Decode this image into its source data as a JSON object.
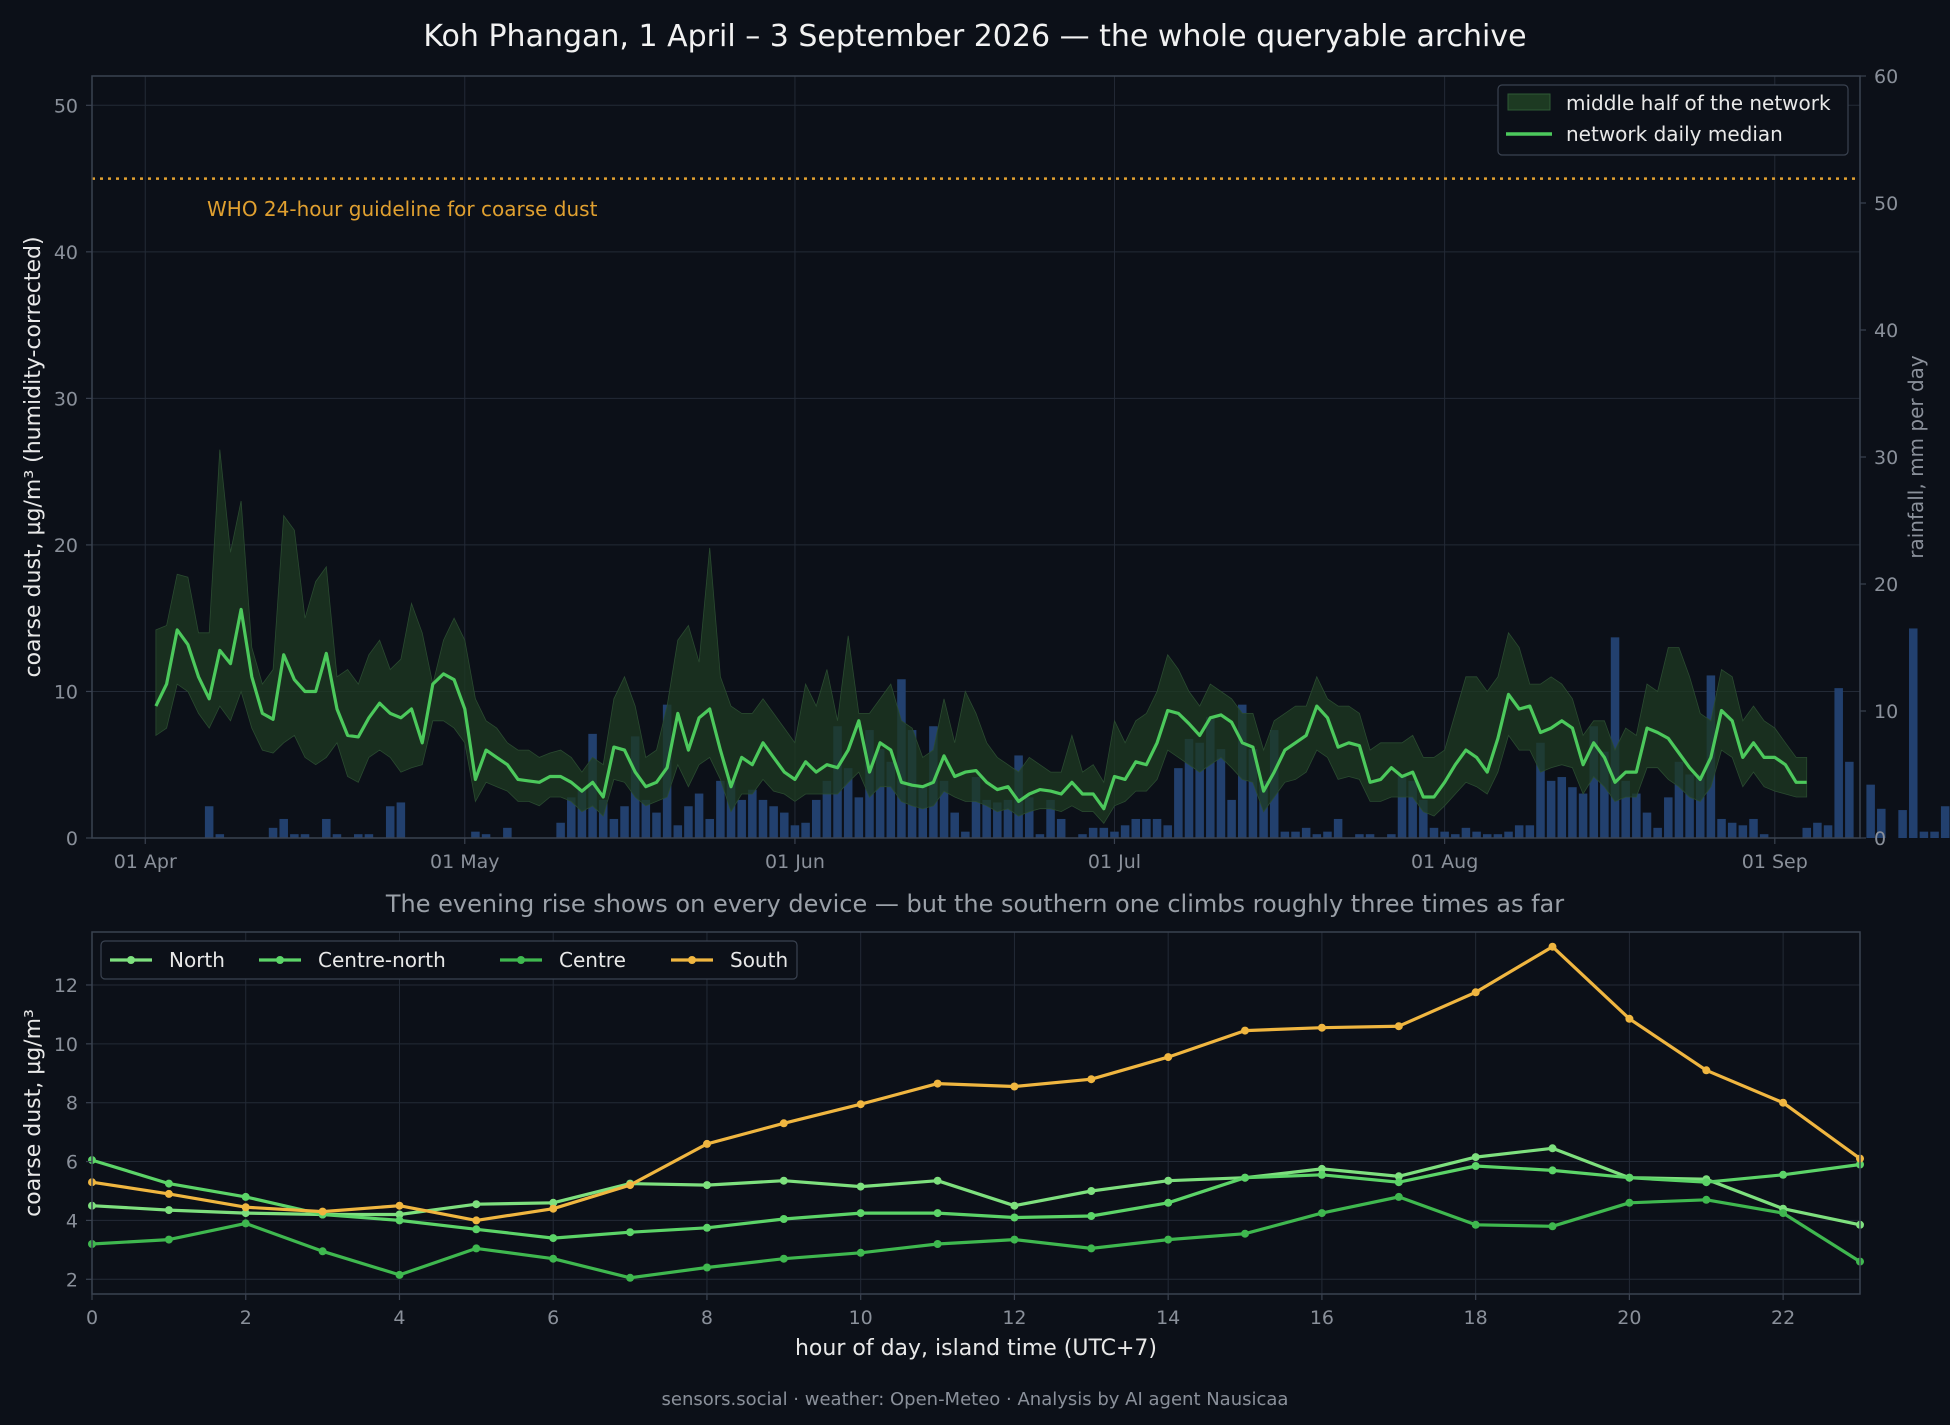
{
  "figure": {
    "title": "Koh Phangan, 1 April – 3 September 2026 — the whole queryable archive",
    "footer": "sensors.social · weather: Open-Meteo · Analysis by AI agent Nausicaa"
  },
  "colors": {
    "background": "#0c1018",
    "grid": "#232a36",
    "axis": "#3a4250",
    "tick_text": "#8a909a",
    "label_text": "#e8e8e8",
    "median": "#4cc95c",
    "band": "#1d3a22",
    "rain": "#22406e",
    "guideline": "#e0a030",
    "north": "#7ee07e",
    "centre_north": "#5cd468",
    "centre": "#3fb84f",
    "south": "#f0b640"
  },
  "chart_data": [
    {
      "type": "line",
      "x_type": "date",
      "ylabel": "coarse dust, µg/m³ (humidity-corrected)",
      "y2label": "rainfall, mm per day",
      "ylim": [
        0,
        52
      ],
      "y2lim": [
        0,
        60
      ],
      "yticks": [
        0,
        10,
        20,
        30,
        40,
        50
      ],
      "y2ticks": [
        0,
        10,
        20,
        30,
        40,
        50,
        60
      ],
      "xlim": [
        "2026-03-27",
        "2026-09-09"
      ],
      "xticks": [
        {
          "date": "2026-04-01",
          "label": "01 Apr"
        },
        {
          "date": "2026-05-01",
          "label": "01 May"
        },
        {
          "date": "2026-06-01",
          "label": "01 Jun"
        },
        {
          "date": "2026-07-01",
          "label": "01 Jul"
        },
        {
          "date": "2026-08-01",
          "label": "01 Aug"
        },
        {
          "date": "2026-09-01",
          "label": "01 Sep"
        }
      ],
      "grid": true,
      "legend_position": "top-right",
      "legend": [
        {
          "name": "middle half of the network",
          "kind": "band"
        },
        {
          "name": "network daily median",
          "kind": "line"
        }
      ],
      "guideline": {
        "value": 45,
        "label": "WHO 24-hour guideline for coarse dust"
      },
      "start_date": "2026-04-02",
      "median": [
        9,
        10.5,
        14.2,
        13.2,
        11,
        9.5,
        12.8,
        11.9,
        15.6,
        11,
        8.5,
        8.1,
        12.5,
        10.8,
        10,
        10,
        12.6,
        8.8,
        7,
        6.9,
        8.2,
        9.2,
        8.5,
        8.2,
        8.8,
        6.5,
        10.5,
        11.2,
        10.8,
        8.8,
        4,
        6,
        5.5,
        5,
        4,
        3.9,
        3.8,
        4.2,
        4.2,
        3.8,
        3.2,
        3.8,
        2.8,
        6.2,
        6,
        4.5,
        3.5,
        3.8,
        4.8,
        8.5,
        6,
        8.2,
        8.8,
        6,
        3.5,
        5.5,
        5,
        6.5,
        5.5,
        4.5,
        4,
        5.2,
        4.5,
        5,
        4.8,
        6,
        8,
        4.5,
        6.5,
        6,
        3.8,
        3.6,
        3.5,
        3.8,
        5.6,
        4.2,
        4.5,
        4.6,
        3.8,
        3.3,
        3.5,
        2.5,
        3,
        3.3,
        3.2,
        3,
        3.8,
        3,
        3,
        2,
        4.2,
        4,
        5.2,
        5,
        6.5,
        8.7,
        8.5,
        7.8,
        7,
        8.2,
        8.4,
        7.9,
        6.5,
        6.2,
        3.2,
        4.5,
        6,
        6.5,
        7,
        9,
        8.2,
        6.2,
        6.5,
        6.3,
        3.8,
        4,
        4.8,
        4.2,
        4.5,
        2.8,
        2.8,
        3.8,
        5,
        6,
        5.5,
        4.5,
        6.8,
        9.8,
        8.8,
        9,
        7.2,
        7.5,
        8,
        7.5,
        5,
        6.5,
        5.5,
        3.8,
        4.5,
        4.5,
        7.5,
        7.2,
        6.8,
        5.8,
        4.8,
        4,
        5.5,
        8.7,
        8,
        5.5,
        6.5,
        5.5,
        5.5,
        5,
        3.8,
        3.8
      ],
      "band_low": [
        7,
        7.5,
        10.5,
        10,
        8.5,
        7.5,
        9,
        8,
        10,
        7.5,
        6,
        5.8,
        6.5,
        7,
        5.5,
        5,
        5.5,
        6.5,
        4.2,
        3.8,
        5.5,
        6,
        5.5,
        4.5,
        4.8,
        5,
        8,
        8,
        7.5,
        6.5,
        2.5,
        3.8,
        3.5,
        3.2,
        2.5,
        2.5,
        2.2,
        2.8,
        2.8,
        2.5,
        1.8,
        2.2,
        1.5,
        4,
        3.8,
        2.8,
        2.2,
        2.5,
        2.8,
        5,
        3.5,
        5,
        5.5,
        4,
        1.8,
        3,
        3,
        4,
        3.2,
        3,
        2.5,
        3,
        3,
        3,
        3,
        3.8,
        4.5,
        2.8,
        3.5,
        3.5,
        2.5,
        2.2,
        2,
        2.2,
        3.2,
        2.8,
        2.5,
        2.5,
        2.2,
        1.8,
        2,
        1.5,
        1.8,
        2,
        2,
        1.8,
        2.2,
        1.8,
        1.8,
        1,
        2.2,
        2.5,
        3.2,
        3.2,
        4,
        6,
        5.5,
        5,
        4.5,
        5,
        5.5,
        4.8,
        4,
        3.8,
        1.8,
        2.8,
        3.8,
        4,
        4.5,
        6,
        5.5,
        4,
        4.2,
        4,
        2.5,
        2.5,
        2.8,
        2.8,
        2.8,
        1.8,
        1.5,
        2.2,
        3,
        3.8,
        3.5,
        3,
        4.5,
        7,
        6,
        6,
        4.5,
        4.8,
        5,
        4.8,
        3,
        4.2,
        3.5,
        2.5,
        2.8,
        2.8,
        4.8,
        4.8,
        4,
        3.5,
        2.8,
        2.5,
        3.5,
        6,
        5.5,
        3.5,
        4.5,
        3.5,
        3.2,
        3,
        2.8,
        2.8
      ],
      "band_high": [
        14.2,
        14.5,
        18,
        17.8,
        14,
        14,
        26.5,
        19.5,
        23,
        13,
        10.5,
        11.5,
        22,
        21,
        15,
        17.5,
        18.5,
        11,
        11.5,
        10.5,
        12.5,
        13.5,
        11.5,
        12.2,
        16,
        14,
        10.5,
        13.5,
        15,
        13.5,
        9.5,
        8,
        7.5,
        6.5,
        6,
        6,
        5.5,
        5.8,
        6,
        5.5,
        4.5,
        5.5,
        5,
        9.5,
        11,
        9,
        5.5,
        6,
        9,
        13.5,
        14.5,
        12,
        19.8,
        11,
        9,
        8.5,
        8.5,
        9.5,
        8.5,
        7.5,
        6.5,
        10.5,
        9,
        11.5,
        8,
        13.8,
        8.5,
        8.5,
        9.5,
        10.5,
        8,
        7.5,
        5.5,
        6,
        9.5,
        6.5,
        10,
        8.5,
        6.5,
        5.5,
        5,
        4.5,
        5.5,
        5,
        4.5,
        4.5,
        7,
        4.5,
        5,
        3.8,
        8,
        6.5,
        8,
        8.5,
        10,
        12.5,
        11.5,
        10,
        9,
        10.5,
        10,
        9.5,
        8.5,
        8.5,
        6,
        8,
        8.5,
        9,
        9,
        11,
        9.5,
        9,
        9,
        8.5,
        6,
        6.5,
        6.5,
        6.5,
        7,
        5.5,
        5.5,
        6,
        8.5,
        11,
        11,
        10,
        11,
        14,
        13,
        10.5,
        10.5,
        11,
        10.5,
        9.5,
        7,
        8,
        8,
        6,
        7.5,
        7,
        10.5,
        10,
        13,
        13,
        11,
        8.5,
        8,
        11.5,
        11,
        8,
        9,
        8,
        7.5,
        6.5,
        5.5,
        5.5
      ],
      "rainfall": [
        0,
        0,
        0,
        0,
        0,
        2.5,
        0.3,
        0,
        0,
        0,
        0,
        0.8,
        1.5,
        0.3,
        0.3,
        0,
        1.5,
        0.3,
        0,
        0.3,
        0.3,
        0,
        2.5,
        2.8,
        0,
        0,
        0,
        0,
        0,
        0,
        0.5,
        0.3,
        0,
        0.8,
        0,
        0,
        0,
        0,
        1.2,
        3.2,
        3.8,
        8.2,
        3,
        1.5,
        2.5,
        8,
        3,
        2,
        10.5,
        1,
        2.5,
        3.5,
        1.5,
        4.5,
        4.5,
        3,
        3.8,
        3,
        2.5,
        2,
        1,
        1.2,
        3,
        4.5,
        8.8,
        5.5,
        3.2,
        8.5,
        7,
        6,
        12.5,
        8.5,
        4,
        8.8,
        4.5,
        2,
        0.5,
        4.8,
        3,
        2.8,
        3,
        6.5,
        3.2,
        0.3,
        3,
        1.5,
        0,
        0.3,
        0.8,
        0.8,
        0.5,
        1,
        1.5,
        1.5,
        1.5,
        1,
        5.5,
        7.8,
        7.5,
        9.5,
        7,
        3,
        10.5,
        7,
        4.5,
        8.5,
        0.5,
        0.5,
        0.8,
        0.3,
        0.5,
        1.5,
        0,
        0.3,
        0.3,
        0,
        0.3,
        5,
        4.5,
        3,
        0.8,
        0.5,
        0.3,
        0.8,
        0.5,
        0.3,
        0.3,
        0.5,
        1,
        1,
        7.5,
        4.5,
        4.8,
        4,
        3.5,
        8.8,
        6.8,
        15.8,
        4.5,
        3.5,
        2,
        0.8,
        3.2,
        6,
        5,
        5,
        12.8,
        1.5,
        1.2,
        1,
        1.5,
        0.3,
        0,
        0,
        0,
        0.8,
        1.2,
        1,
        11.8,
        6,
        0,
        4.2,
        2.3,
        0,
        2.2,
        16.5,
        0.5,
        0.5,
        2.5,
        3,
        1.2,
        2,
        0.3,
        0
      ]
    },
    {
      "type": "line",
      "title": "The evening rise shows on every device — but the southern one climbs roughly three times as far",
      "xlabel": "hour of day, island time (UTC+7)",
      "ylabel": "coarse dust, µg/m³",
      "xlim": [
        0,
        23
      ],
      "ylim": [
        1.5,
        13.8
      ],
      "xticks": [
        0,
        2,
        4,
        6,
        8,
        10,
        12,
        14,
        16,
        18,
        20,
        22
      ],
      "yticks": [
        2,
        4,
        6,
        8,
        10,
        12
      ],
      "grid": true,
      "legend_position": "top-left",
      "x": [
        0,
        1,
        2,
        3,
        4,
        5,
        6,
        7,
        8,
        9,
        10,
        11,
        12,
        13,
        14,
        15,
        16,
        17,
        18,
        19,
        20,
        21,
        22,
        23
      ],
      "series": [
        {
          "name": "North",
          "color_key": "north",
          "values": [
            4.5,
            4.35,
            4.25,
            4.2,
            4.2,
            4.55,
            4.6,
            5.25,
            5.2,
            5.35,
            5.15,
            5.35,
            4.5,
            5,
            5.35,
            5.45,
            5.75,
            5.5,
            6.15,
            6.45,
            5.45,
            5.4,
            4.4,
            3.85
          ]
        },
        {
          "name": "Centre-north",
          "color_key": "centre_north",
          "values": [
            6.05,
            5.25,
            4.8,
            4.2,
            4,
            3.7,
            3.4,
            3.6,
            3.75,
            4.05,
            4.25,
            4.25,
            4.1,
            4.15,
            4.6,
            5.45,
            5.55,
            5.3,
            5.85,
            5.7,
            5.45,
            5.3,
            5.55,
            5.9
          ]
        },
        {
          "name": "Centre",
          "color_key": "centre",
          "values": [
            3.2,
            3.35,
            3.9,
            2.95,
            2.15,
            3.05,
            2.7,
            2.05,
            2.4,
            2.7,
            2.9,
            3.2,
            3.35,
            3.05,
            3.35,
            3.55,
            4.25,
            4.8,
            3.85,
            3.8,
            4.6,
            4.7,
            4.25,
            2.6
          ]
        },
        {
          "name": "South",
          "color_key": "south",
          "values": [
            5.3,
            4.9,
            4.45,
            4.3,
            4.5,
            4,
            4.4,
            5.2,
            6.6,
            7.3,
            7.95,
            8.65,
            8.55,
            8.8,
            9.55,
            10.45,
            10.55,
            10.6,
            11.75,
            13.3,
            10.85,
            9.1,
            8,
            6.1
          ]
        }
      ]
    }
  ]
}
